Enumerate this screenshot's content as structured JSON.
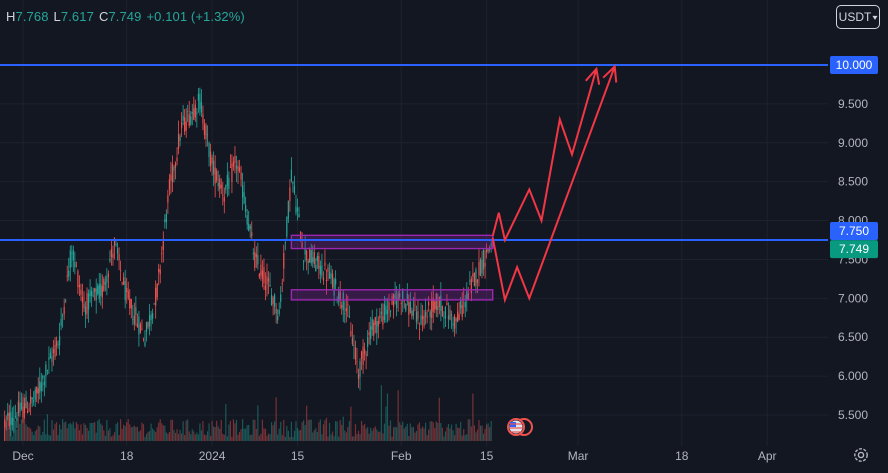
{
  "legend": {
    "h_label": "H",
    "h_value": "7.768",
    "l_label": "L",
    "l_value": "7.617",
    "c_label": "C",
    "c_value": "7.749",
    "change": "+0.101 (+1.32%)"
  },
  "toolbar": {
    "quote_currency": "USDT"
  },
  "colors": {
    "background": "#131722",
    "up": "#26a69a",
    "down": "#ef5350",
    "level_line": "#2962ff",
    "zone": "#9c27b0",
    "projection": "#f23645",
    "price_badge": "#089981"
  },
  "chart_data": {
    "type": "candlestick",
    "symbol_quote": "USDT",
    "ylim": [
      5.1,
      10.6
    ],
    "y_ticks": [
      "10.000",
      "9.500",
      "9.000",
      "8.500",
      "8.000",
      "7.500",
      "7.000",
      "6.500",
      "6.000",
      "5.500"
    ],
    "x_ticks": [
      "Dec",
      "18",
      "2024",
      "15",
      "Feb",
      "15",
      "Mar",
      "18",
      "Apr"
    ],
    "x_dates": [
      "2023-12-01",
      "2023-12-18",
      "2024-01-01",
      "2024-01-15",
      "2024-02-01",
      "2024-02-15",
      "2024-03-01",
      "2024-03-18",
      "2024-04-01"
    ],
    "levels": [
      {
        "price": 10.0,
        "label": "10.000"
      },
      {
        "price": 7.75,
        "label": "7.750"
      }
    ],
    "last_price": {
      "price": 7.749,
      "label": "7.749"
    },
    "price_path": [
      {
        "date": "2023-11-28",
        "price": 5.4
      },
      {
        "date": "2023-12-03",
        "price": 5.7
      },
      {
        "date": "2023-12-07",
        "price": 6.5
      },
      {
        "date": "2023-12-09",
        "price": 7.65
      },
      {
        "date": "2023-12-11",
        "price": 6.9
      },
      {
        "date": "2023-12-14",
        "price": 7.1
      },
      {
        "date": "2023-12-16",
        "price": 7.7
      },
      {
        "date": "2023-12-18",
        "price": 7.0
      },
      {
        "date": "2023-12-21",
        "price": 6.5
      },
      {
        "date": "2023-12-23",
        "price": 7.1
      },
      {
        "date": "2023-12-25",
        "price": 8.4
      },
      {
        "date": "2023-12-27",
        "price": 9.2
      },
      {
        "date": "2023-12-30",
        "price": 9.55
      },
      {
        "date": "2024-01-01",
        "price": 8.7
      },
      {
        "date": "2024-01-03",
        "price": 8.35
      },
      {
        "date": "2024-01-05",
        "price": 8.75
      },
      {
        "date": "2024-01-06",
        "price": 8.4
      },
      {
        "date": "2024-01-08",
        "price": 7.5
      },
      {
        "date": "2024-01-10",
        "price": 7.2
      },
      {
        "date": "2024-01-12",
        "price": 6.8
      },
      {
        "date": "2024-01-14",
        "price": 8.6
      },
      {
        "date": "2024-01-16",
        "price": 7.6
      },
      {
        "date": "2024-01-20",
        "price": 7.3
      },
      {
        "date": "2024-01-23",
        "price": 6.9
      },
      {
        "date": "2024-01-25",
        "price": 6.05
      },
      {
        "date": "2024-01-27",
        "price": 6.6
      },
      {
        "date": "2024-02-01",
        "price": 7.05
      },
      {
        "date": "2024-02-04",
        "price": 6.7
      },
      {
        "date": "2024-02-07",
        "price": 6.95
      },
      {
        "date": "2024-02-10",
        "price": 6.7
      },
      {
        "date": "2024-02-13",
        "price": 7.25
      },
      {
        "date": "2024-02-16",
        "price": 7.749
      }
    ],
    "zones": [
      {
        "from": "2024-01-14",
        "to": "2024-02-16",
        "low": 7.64,
        "high": 7.81
      },
      {
        "from": "2024-01-14",
        "to": "2024-02-16",
        "low": 6.98,
        "high": 7.11
      }
    ],
    "projections": [
      {
        "points": [
          {
            "date": "2024-02-16",
            "price": 7.8
          },
          {
            "date": "2024-02-17",
            "price": 8.1
          },
          {
            "date": "2024-02-18",
            "price": 7.75
          },
          {
            "date": "2024-02-22",
            "price": 8.4
          },
          {
            "date": "2024-02-24",
            "price": 8.0
          },
          {
            "date": "2024-02-27",
            "price": 9.3
          },
          {
            "date": "2024-02-29",
            "price": 8.85
          },
          {
            "date": "2024-03-04",
            "price": 9.95
          }
        ]
      },
      {
        "points": [
          {
            "date": "2024-02-16",
            "price": 7.78
          },
          {
            "date": "2024-02-18",
            "price": 6.98
          },
          {
            "date": "2024-02-20",
            "price": 7.4
          },
          {
            "date": "2024-02-22",
            "price": 7.0
          },
          {
            "date": "2024-03-07",
            "price": 9.98
          }
        ]
      }
    ]
  }
}
